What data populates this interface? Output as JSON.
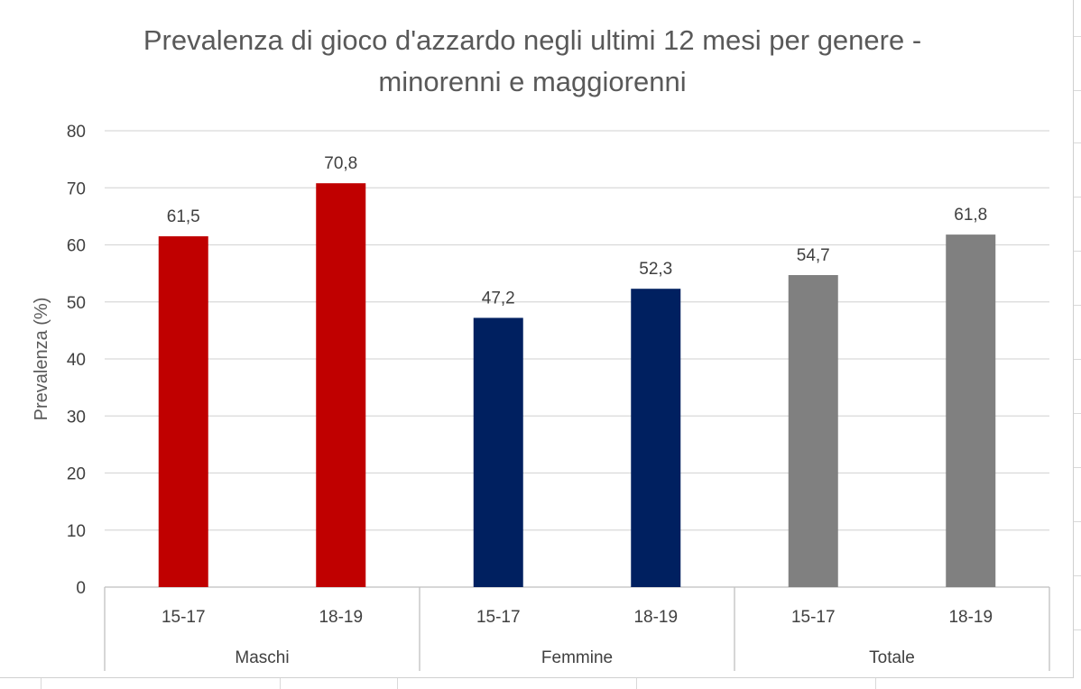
{
  "chart_data": {
    "type": "bar",
    "title_lines": [
      "Prevalenza di gioco d'azzardo negli ultimi 12 mesi per genere -",
      "minorenni e maggiorenni"
    ],
    "xlabel": "",
    "ylabel": "Prevalenza (%)",
    "ylim": [
      0,
      80
    ],
    "yticks": [
      "0",
      "10",
      "20",
      "30",
      "40",
      "50",
      "60",
      "70",
      "80"
    ],
    "grid": true,
    "legend": "none",
    "groups": [
      {
        "name": "Maschi",
        "color": "#c00000",
        "bars": [
          {
            "category": "15-17",
            "value": 61.5,
            "label": "61,5"
          },
          {
            "category": "18-19",
            "value": 70.8,
            "label": "70,8"
          }
        ]
      },
      {
        "name": "Femmine",
        "color": "#002060",
        "bars": [
          {
            "category": "15-17",
            "value": 47.2,
            "label": "47,2"
          },
          {
            "category": "18-19",
            "value": 52.3,
            "label": "52,3"
          }
        ]
      },
      {
        "name": "Totale",
        "color": "#808080",
        "bars": [
          {
            "category": "15-17",
            "value": 54.7,
            "label": "54,7"
          },
          {
            "category": "18-19",
            "value": 61.8,
            "label": "61,8"
          }
        ]
      }
    ]
  }
}
